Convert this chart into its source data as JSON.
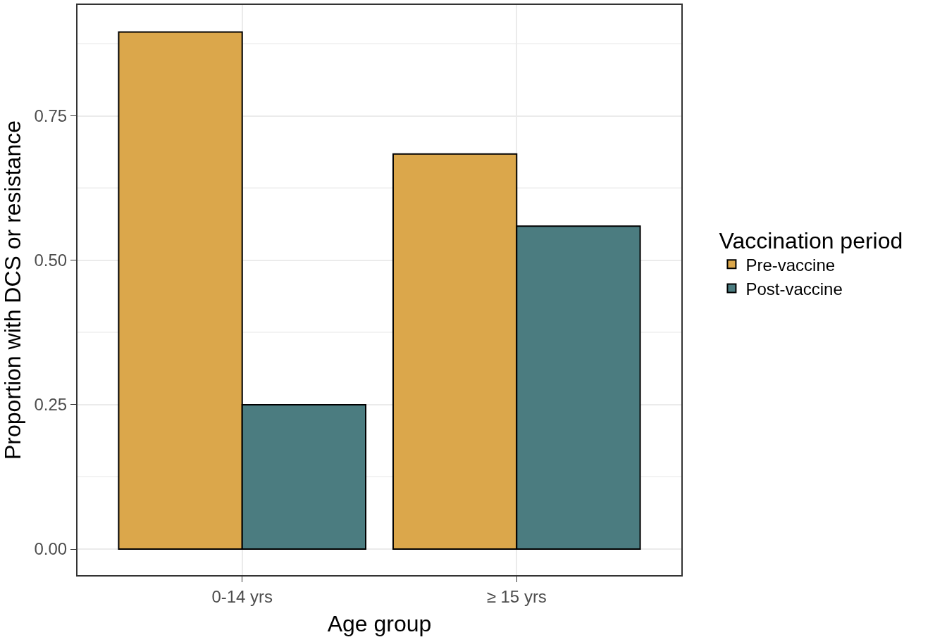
{
  "chart_data": {
    "type": "bar",
    "xlabel": "Age group",
    "ylabel": "Proportion with DCS or resistance",
    "legend_title": "Vaccination period",
    "categories": [
      "0-14 yrs",
      "≥ 15 yrs"
    ],
    "series": [
      {
        "name": "Pre-vaccine",
        "color": "#dba74b",
        "values": [
          0.895,
          0.684
        ]
      },
      {
        "name": "Post-vaccine",
        "color": "#4b7c80",
        "values": [
          0.25,
          0.559
        ]
      }
    ],
    "ylim": [
      -0.045,
      0.942
    ],
    "yticks": [
      {
        "value": 0,
        "label": "0.00"
      },
      {
        "value": 0.25,
        "label": "0.25"
      },
      {
        "value": 0.5,
        "label": "0.50"
      },
      {
        "value": 0.75,
        "label": "0.75"
      }
    ],
    "grid": true,
    "legend": "right"
  }
}
